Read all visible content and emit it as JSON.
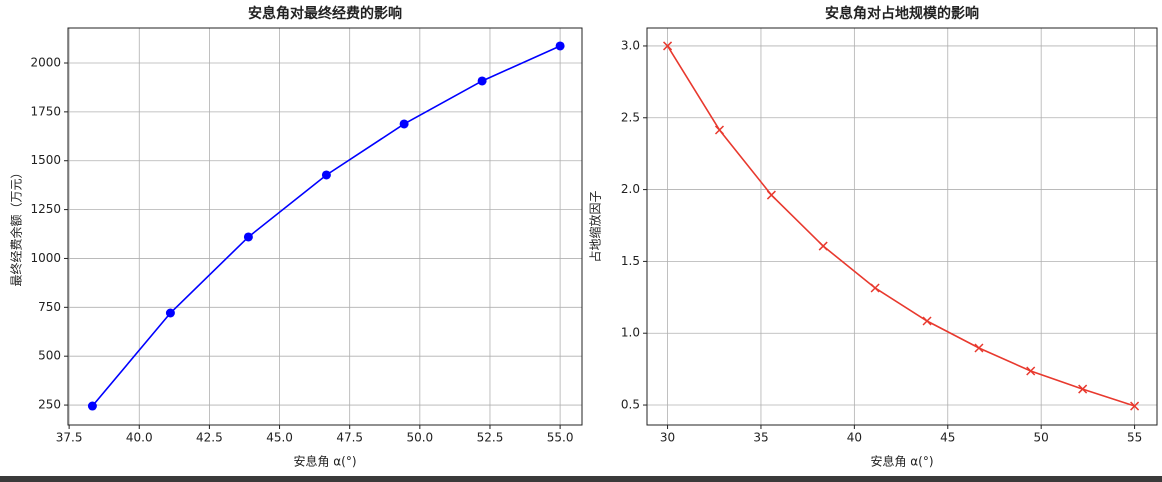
{
  "chart_data": [
    {
      "type": "line",
      "title": "安息角对最终经费的影响",
      "x_label": "安息角 α(°)",
      "y_label": "最终经费余额（万元）",
      "x": [
        38.33,
        41.11,
        43.89,
        46.67,
        49.44,
        52.22,
        55.0
      ],
      "values": [
        245,
        721,
        1110,
        1427,
        1688,
        1908,
        2087
      ],
      "color": "#0000ff",
      "marker": "o",
      "xlim": [
        37.46,
        55.78
      ],
      "ylim": [
        148,
        2179
      ],
      "xticks": [
        {
          "value": 37.5,
          "label": "37.5"
        },
        {
          "value": 40,
          "label": "40.0"
        },
        {
          "value": 42.5,
          "label": "42.5"
        },
        {
          "value": 45,
          "label": "45.0"
        },
        {
          "value": 47.5,
          "label": "47.5"
        },
        {
          "value": 50,
          "label": "50.0"
        },
        {
          "value": 52.5,
          "label": "52.5"
        },
        {
          "value": 55,
          "label": "55.0"
        }
      ],
      "yticks": [
        250,
        500,
        750,
        1000,
        1250,
        1500,
        1750,
        2000
      ],
      "grid": true
    },
    {
      "type": "line",
      "title": "安息角对占地规模的影响",
      "x_label": "安息角 α(°)",
      "y_label": "占地缩放因子",
      "x": [
        30,
        32.78,
        35.56,
        38.33,
        41.11,
        43.89,
        46.67,
        49.44,
        52.22,
        55.0
      ],
      "values": [
        3.0,
        2.415,
        1.962,
        1.607,
        1.315,
        1.085,
        0.897,
        0.737,
        0.611,
        0.493
      ],
      "color": "#e8392e",
      "marker": "x",
      "xlim": [
        28.9,
        56.2
      ],
      "ylim": [
        0.361,
        3.125
      ],
      "xticks": [
        30,
        35,
        40,
        45,
        50,
        55
      ],
      "yticks": [
        {
          "value": 0.5,
          "label": "0.5"
        },
        {
          "value": 1,
          "label": "1.0"
        },
        {
          "value": 1.5,
          "label": "1.5"
        },
        {
          "value": 2,
          "label": "2.0"
        },
        {
          "value": 2.5,
          "label": "2.5"
        },
        {
          "value": 3,
          "label": "3.0"
        }
      ],
      "grid": true
    }
  ]
}
